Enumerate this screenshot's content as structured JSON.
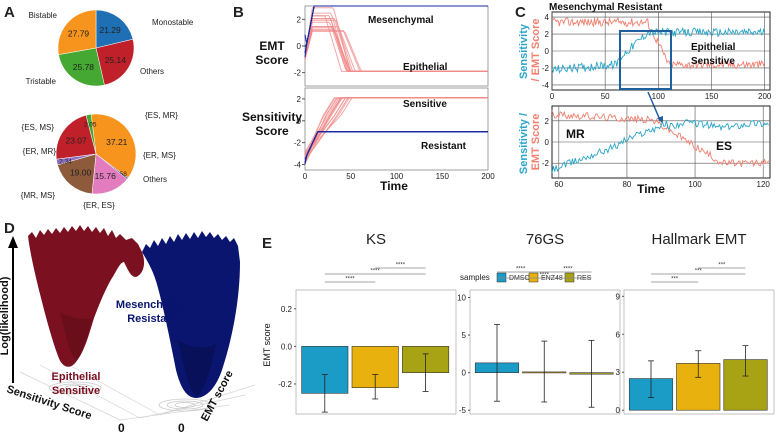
{
  "panel_labels": {
    "a": "A",
    "b": "B",
    "c": "C",
    "d": "D",
    "e": "E"
  },
  "panel_a": {
    "pie_top": {
      "slices": [
        {
          "label": "Monostable",
          "value": "21.29",
          "color": "#1f6fb5"
        },
        {
          "label": "Others",
          "value": "25.14",
          "color": "#c0202a"
        },
        {
          "label": "Tristable",
          "value": "25.78",
          "color": "#44a832"
        },
        {
          "label": "Bistable",
          "value": "27.79",
          "color": "#f7941d"
        }
      ]
    },
    "pie_bottom": {
      "slices": [
        {
          "label": "{ES, MR}",
          "value": "37.21",
          "color": "#f7941d"
        },
        {
          "label": "{ER, MS}",
          "value": "0.58",
          "color": "#3b56a6"
        },
        {
          "label": "Others",
          "value": "15.76",
          "color": "#e37bbf"
        },
        {
          "label": "{ER, ES}",
          "value": "19.00",
          "color": "#8e5a3c"
        },
        {
          "label": "{MR, MS}",
          "value": "2.34",
          "color": "#8d6fc0"
        },
        {
          "label": "{ER, MR}",
          "value": "23.07",
          "color": "#c0202a"
        },
        {
          "label": "{ES, MS}",
          "value": "2.05",
          "color": "#44a832"
        }
      ]
    }
  },
  "panel_b": {
    "emt_ylabel": "EMT\nScore",
    "sens_ylabel": "Sensitivity\nScore",
    "xlabel": "Time",
    "emt_labels": {
      "top": "Mesenchymal",
      "bottom": "Epithelial"
    },
    "sens_labels": {
      "top": "Sensitive",
      "bottom": "Resistant"
    },
    "emt_yticks": [
      "2",
      "0",
      "-2"
    ],
    "sens_yticks": [
      "2",
      "0",
      "-2",
      "-4"
    ],
    "xticks": [
      "0",
      "50",
      "100",
      "150",
      "200"
    ]
  },
  "panel_c": {
    "title": "Mesenchymal Resistant",
    "ylabel_part1": "Sensitivity",
    "ylabel_part2": "/ EMT Score",
    "ylabel2_part1": "Sensitivity /",
    "ylabel2_part2": "EMT Score",
    "top_label_1": "Epithelial",
    "top_label_2": "Sensitive",
    "top_yticks": [
      "4",
      "2",
      "0",
      "-2",
      "-4"
    ],
    "top_xticks": [
      "0",
      "50",
      "100",
      "150",
      "200"
    ],
    "bottom_yticks": [
      "2",
      "0",
      "-2"
    ],
    "bottom_xticks": [
      "60",
      "80",
      "100",
      "120"
    ],
    "bottom_labels": {
      "left": "MR",
      "right": "ES"
    },
    "xlabel": "Time",
    "colors": {
      "emt": "#f08070",
      "sens": "#2aa5c8"
    }
  },
  "panel_d": {
    "ylabel": "Log(likelihood)",
    "axis_sensitivity": "Sensitivity Score",
    "axis_emt": "EMT score",
    "zero_left": "0",
    "zero_right": "0",
    "label_mr_1": "Mesenchymal",
    "label_mr_2": "Resistant",
    "label_es_1": "Epithelial",
    "label_es_2": "Sensitive",
    "colors": {
      "es": "#7a1020",
      "mr": "#0a1570"
    }
  },
  "panel_e": {
    "ylabel": "EMT score",
    "legend_title": "samples",
    "legend": [
      {
        "name": "DMSO",
        "color": "#1a9cc6"
      },
      {
        "name": "ENZ48",
        "color": "#e8b10e"
      },
      {
        "name": "RES",
        "color": "#a8a215"
      }
    ],
    "chart_data": [
      {
        "type": "bar",
        "title": "KS",
        "ylabel": "EMT score",
        "categories": [
          "DMSO",
          "ENZ48",
          "RES"
        ],
        "values": [
          -0.25,
          -0.22,
          -0.14
        ],
        "errors_low": [
          -0.35,
          -0.28,
          -0.24
        ],
        "errors_high": [
          -0.15,
          -0.15,
          -0.04
        ],
        "ylim": [
          -0.36,
          0.3
        ],
        "yticks": [
          0.2,
          0.0,
          -0.2
        ],
        "significance": [
          "****",
          "****",
          "****"
        ]
      },
      {
        "type": "bar",
        "title": "76GS",
        "categories": [
          "DMSO",
          "ENZ48",
          "RES"
        ],
        "values": [
          1.3,
          0.1,
          -0.2
        ],
        "errors_low": [
          -3.8,
          -3.9,
          -4.6
        ],
        "errors_high": [
          6.4,
          4.2,
          4.3
        ],
        "ylim": [
          -5.5,
          11
        ],
        "yticks": [
          10,
          5,
          0,
          -5
        ],
        "significance": [
          "****",
          "****",
          "****"
        ]
      },
      {
        "type": "bar",
        "title": "Hallmark EMT",
        "categories": [
          "DMSO",
          "ENZ48",
          "RES"
        ],
        "values": [
          2.5,
          3.7,
          4.0
        ],
        "errors_low": [
          1.0,
          2.6,
          2.7
        ],
        "errors_high": [
          3.9,
          4.7,
          5.1
        ],
        "ylim": [
          -0.3,
          9.5
        ],
        "yticks": [
          9,
          6,
          3,
          0
        ],
        "significance": [
          "***",
          "***",
          "***"
        ]
      }
    ]
  }
}
